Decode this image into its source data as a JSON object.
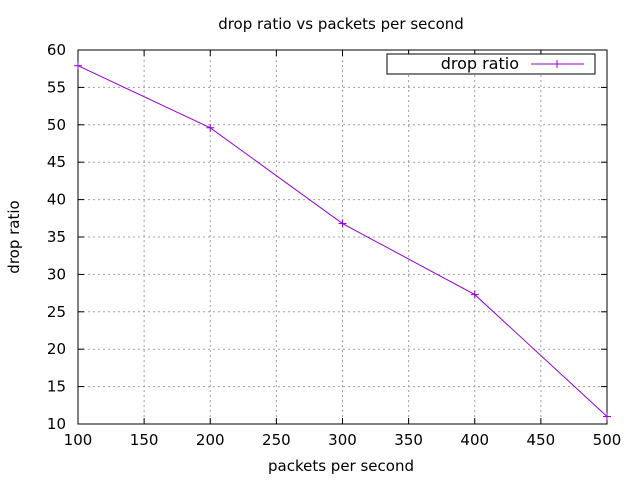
{
  "chart_data": {
    "type": "line",
    "title": "drop ratio vs packets per second",
    "xlabel": "packets per second",
    "ylabel": "drop ratio",
    "xlim": [
      100,
      500
    ],
    "ylim": [
      10,
      60
    ],
    "xticks": [
      100,
      150,
      200,
      250,
      300,
      350,
      400,
      450,
      500
    ],
    "yticks": [
      10,
      15,
      20,
      25,
      30,
      35,
      40,
      45,
      50,
      55,
      60
    ],
    "grid": true,
    "legend_position": "top-right",
    "series": [
      {
        "name": "drop ratio",
        "color": "#9400d3",
        "marker": "plus",
        "x": [
          100,
          200,
          300,
          400,
          500
        ],
        "y": [
          57.9,
          49.6,
          36.8,
          27.3,
          11.0
        ]
      }
    ]
  }
}
